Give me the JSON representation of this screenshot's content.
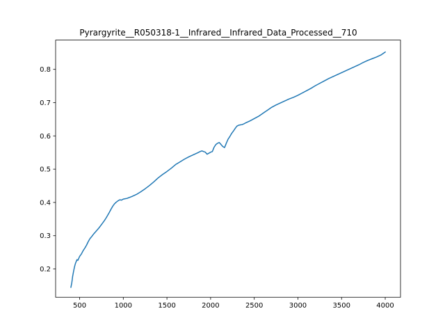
{
  "chart_data": {
    "type": "line",
    "title": "Pyrargyrite__R050318-1__Infrared__Infrared_Data_Processed__710",
    "xlabel": "",
    "ylabel": "",
    "xlim": [
      225,
      4175
    ],
    "ylim": [
      0.115,
      0.888
    ],
    "xticks": [
      500,
      1000,
      1500,
      2000,
      2500,
      3000,
      3500,
      4000
    ],
    "xtick_labels": [
      "500",
      "1000",
      "1500",
      "2000",
      "2500",
      "3000",
      "3500",
      "4000"
    ],
    "yticks": [
      0.2,
      0.3,
      0.4,
      0.5,
      0.6,
      0.7,
      0.8
    ],
    "ytick_labels": [
      "0.2",
      "0.3",
      "0.4",
      "0.5",
      "0.6",
      "0.7",
      "0.8"
    ],
    "grid": false,
    "legend": "none",
    "series": [
      {
        "color": "#1f77b4",
        "x": [
          400,
          410,
          420,
          430,
          440,
          450,
          460,
          470,
          480,
          490,
          500,
          520,
          540,
          560,
          580,
          600,
          620,
          640,
          660,
          680,
          700,
          720,
          740,
          760,
          780,
          800,
          820,
          840,
          860,
          880,
          900,
          920,
          940,
          960,
          980,
          1000,
          1020,
          1040,
          1060,
          1080,
          1100,
          1150,
          1200,
          1250,
          1300,
          1350,
          1400,
          1450,
          1500,
          1550,
          1600,
          1650,
          1700,
          1750,
          1800,
          1850,
          1880,
          1900,
          1920,
          1940,
          1960,
          1980,
          2000,
          2020,
          2040,
          2060,
          2080,
          2100,
          2120,
          2140,
          2160,
          2180,
          2200,
          2220,
          2240,
          2260,
          2280,
          2300,
          2320,
          2340,
          2360,
          2380,
          2400,
          2450,
          2500,
          2550,
          2600,
          2650,
          2700,
          2750,
          2800,
          2850,
          2900,
          2950,
          3000,
          3050,
          3100,
          3150,
          3200,
          3250,
          3300,
          3350,
          3400,
          3450,
          3500,
          3550,
          3600,
          3650,
          3700,
          3750,
          3800,
          3850,
          3900,
          3950,
          4000
        ],
        "y": [
          0.145,
          0.158,
          0.178,
          0.192,
          0.205,
          0.215,
          0.222,
          0.228,
          0.226,
          0.232,
          0.238,
          0.245,
          0.255,
          0.263,
          0.272,
          0.283,
          0.292,
          0.298,
          0.305,
          0.311,
          0.317,
          0.323,
          0.33,
          0.337,
          0.344,
          0.352,
          0.361,
          0.37,
          0.38,
          0.389,
          0.396,
          0.401,
          0.405,
          0.408,
          0.407,
          0.41,
          0.411,
          0.412,
          0.414,
          0.416,
          0.418,
          0.424,
          0.432,
          0.441,
          0.451,
          0.462,
          0.474,
          0.484,
          0.493,
          0.503,
          0.514,
          0.522,
          0.53,
          0.537,
          0.543,
          0.549,
          0.553,
          0.555,
          0.553,
          0.551,
          0.545,
          0.548,
          0.551,
          0.553,
          0.566,
          0.574,
          0.578,
          0.58,
          0.574,
          0.568,
          0.565,
          0.578,
          0.59,
          0.598,
          0.607,
          0.614,
          0.622,
          0.629,
          0.632,
          0.633,
          0.634,
          0.636,
          0.639,
          0.645,
          0.652,
          0.659,
          0.668,
          0.677,
          0.686,
          0.693,
          0.699,
          0.705,
          0.711,
          0.716,
          0.722,
          0.729,
          0.736,
          0.743,
          0.751,
          0.758,
          0.765,
          0.772,
          0.778,
          0.784,
          0.79,
          0.796,
          0.802,
          0.808,
          0.814,
          0.821,
          0.827,
          0.832,
          0.837,
          0.843,
          0.852
        ]
      }
    ]
  }
}
